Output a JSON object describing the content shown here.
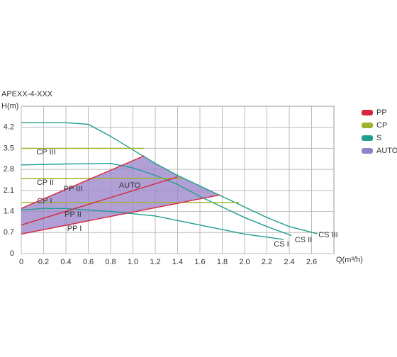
{
  "chart_data": {
    "type": "line",
    "title": "APEXX-4-XXX",
    "y_label": "H(m)",
    "x_label": "Q(m³/h)",
    "xlim": [
      0,
      2.8
    ],
    "ylim": [
      0,
      4.9
    ],
    "xticks": [
      0,
      0.2,
      0.4,
      0.6,
      0.8,
      {
        "value": 1,
        "label": "1.0"
      },
      1.2,
      1.4,
      1.6,
      1.8,
      {
        "value": 2,
        "label": "2.0"
      },
      2.2,
      2.4,
      2.6
    ],
    "yticks": [
      0,
      0.7,
      1.4,
      2.1,
      2.8,
      3.5,
      4.2
    ],
    "grid": true,
    "legend_position": "right",
    "legend": [
      {
        "name": "PP",
        "color": "#d7263d"
      },
      {
        "name": "CP",
        "color": "#9bb52c"
      },
      {
        "name": "S",
        "color": "#1f9e8f"
      },
      {
        "name": "AUTO",
        "color": "#9580c8"
      }
    ],
    "series": [
      {
        "name": "AUTO",
        "legend": 3,
        "fill": true,
        "x": [
          0,
          1.1,
          1.2,
          1.4,
          1.6,
          1.78,
          0
        ],
        "values": [
          1.5,
          3.25,
          3.0,
          2.6,
          2.25,
          1.95,
          0.65
        ]
      },
      {
        "name": "CS III",
        "legend": 2,
        "x": [
          0,
          0.4,
          0.6,
          0.8,
          1.0,
          1.2,
          1.4,
          1.6,
          1.8,
          2.0,
          2.2,
          2.4,
          2.65
        ],
        "values": [
          4.35,
          4.35,
          4.3,
          3.9,
          3.45,
          3.0,
          2.6,
          2.25,
          1.9,
          1.55,
          1.2,
          0.9,
          0.66
        ]
      },
      {
        "name": "CS II",
        "legend": 2,
        "x": [
          0,
          0.4,
          0.8,
          1.0,
          1.2,
          1.4,
          1.6,
          1.8,
          2.0,
          2.2,
          2.42
        ],
        "values": [
          2.95,
          2.98,
          3.0,
          2.85,
          2.6,
          2.3,
          1.9,
          1.55,
          1.2,
          0.9,
          0.6
        ]
      },
      {
        "name": "CS I",
        "legend": 2,
        "x": [
          0,
          0.2,
          0.4,
          0.8,
          1.2,
          1.6,
          2.0,
          2.35
        ],
        "values": [
          1.45,
          1.5,
          1.5,
          1.4,
          1.25,
          0.95,
          0.65,
          0.47
        ]
      },
      {
        "name": "CP III",
        "legend": 1,
        "x": [
          0,
          1.1
        ],
        "values": [
          3.5,
          3.5
        ]
      },
      {
        "name": "CP II",
        "legend": 1,
        "x": [
          0,
          1.45
        ],
        "values": [
          2.5,
          2.5
        ]
      },
      {
        "name": "CP I",
        "legend": 1,
        "x": [
          0,
          1.95
        ],
        "values": [
          1.7,
          1.7
        ]
      },
      {
        "name": "PP III",
        "legend": 0,
        "x": [
          0,
          1.1
        ],
        "values": [
          1.5,
          3.25
        ]
      },
      {
        "name": "PP II",
        "legend": 0,
        "x": [
          0,
          1.4
        ],
        "values": [
          0.95,
          2.55
        ]
      },
      {
        "name": "PP I",
        "legend": 0,
        "x": [
          0,
          1.78
        ],
        "values": [
          0.65,
          1.95
        ]
      }
    ]
  }
}
